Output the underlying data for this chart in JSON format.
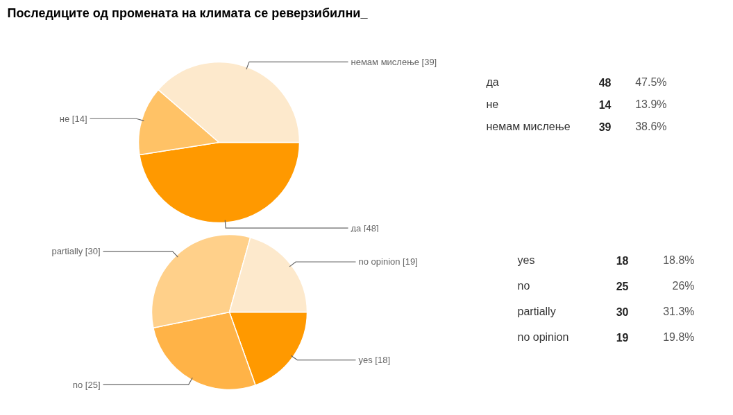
{
  "chart_data": [
    {
      "type": "pie",
      "title": "Последиците од промената на климата се реверзибилни_",
      "categories": [
        "да [48]",
        "не [14]",
        "немам мислење [39]"
      ],
      "values": [
        48,
        14,
        39
      ],
      "colors": [
        "#ff9900",
        "#ffc266",
        "#fde9cc"
      ]
    },
    {
      "type": "other",
      "annotations": [
        "да",
        "48",
        "47.5%",
        "не",
        "14",
        "13.9%",
        "немам мислење",
        "39",
        "38.6%"
      ]
    },
    {
      "type": "pie",
      "categories": [
        "yes [18]",
        "no [25]",
        "partially [30]",
        "no opinion [19]"
      ],
      "values": [
        18,
        25,
        30,
        19
      ],
      "colors": [
        "#ff9900",
        "#ffb347",
        "#ffd08a",
        "#fde9cc"
      ]
    },
    {
      "type": "other",
      "annotations": [
        "yes",
        "18",
        "18.8%",
        "no",
        "25",
        "26%",
        "partially",
        "30",
        "31.3%",
        "no opinion",
        "19",
        "19.8%"
      ]
    }
  ]
}
